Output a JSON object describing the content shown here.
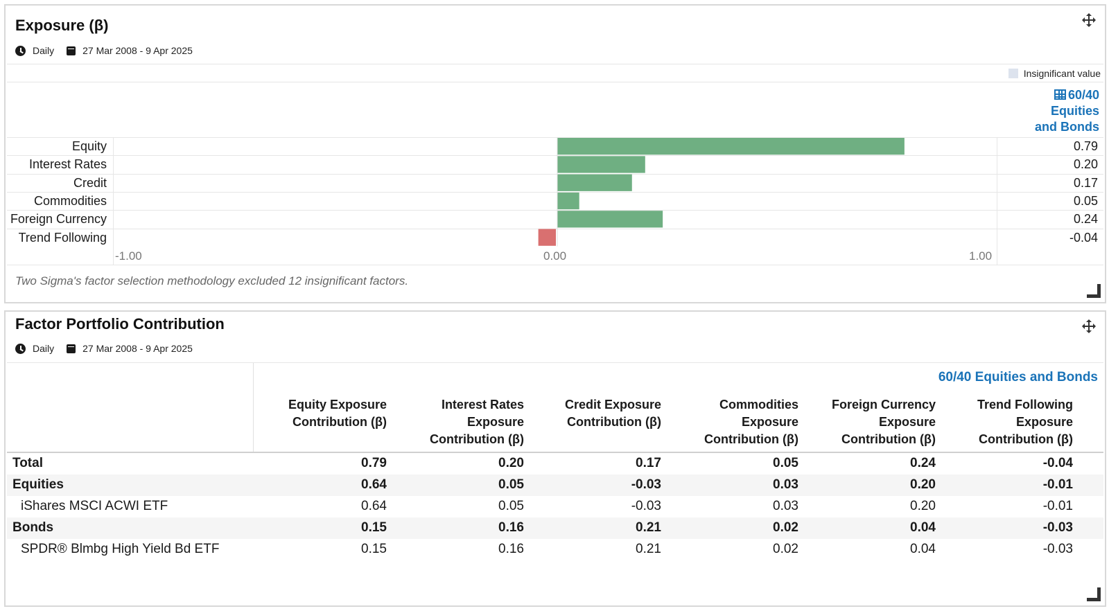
{
  "exposure": {
    "title": "Exposure (β)",
    "frequency": "Daily",
    "date_range": "27 Mar 2008 - 9 Apr 2025",
    "legend": "Insignificant value",
    "portfolio_label": "60/40 Equities and Bonds",
    "note": "Two Sigma's factor selection methodology excluded 12 insignificant factors.",
    "colors": {
      "positive": "#6faf82",
      "negative": "#d97070",
      "insignificant": "#dde3ee",
      "link": "#1a73b8"
    }
  },
  "chart_data": {
    "type": "bar",
    "orientation": "horizontal",
    "categories": [
      "Equity",
      "Interest Rates",
      "Credit",
      "Commodities",
      "Foreign Currency",
      "Trend Following"
    ],
    "values": [
      0.79,
      0.2,
      0.17,
      0.05,
      0.24,
      -0.04
    ],
    "value_labels": [
      "0.79",
      "0.20",
      "0.17",
      "0.05",
      "0.24",
      "-0.04"
    ],
    "xlim": [
      -1.0,
      1.0
    ],
    "ticks": [
      "-1.00",
      "0.00",
      "1.00"
    ],
    "legend_position": "top-right"
  },
  "contribution": {
    "title": "Factor Portfolio Contribution",
    "frequency": "Daily",
    "date_range": "27 Mar 2008 - 9 Apr 2025",
    "portfolio_label": "60/40 Equities and Bonds",
    "columns": [
      [
        "Equity Exposure",
        "Contribution (β)"
      ],
      [
        "Interest Rates",
        "Exposure",
        "Contribution (β)"
      ],
      [
        "Credit Exposure",
        "Contribution (β)"
      ],
      [
        "Commodities",
        "Exposure",
        "Contribution (β)"
      ],
      [
        "Foreign Currency",
        "Exposure",
        "Contribution (β)"
      ],
      [
        "Trend Following",
        "Exposure",
        "Contribution (β)"
      ]
    ],
    "rows": [
      {
        "label": "Total",
        "bold": true,
        "values": [
          "0.79",
          "0.20",
          "0.17",
          "0.05",
          "0.24",
          "-0.04"
        ]
      },
      {
        "label": "Equities",
        "bold": true,
        "values": [
          "0.64",
          "0.05",
          "-0.03",
          "0.03",
          "0.20",
          "-0.01"
        ]
      },
      {
        "label": "iShares MSCI ACWI ETF",
        "bold": false,
        "values": [
          "0.64",
          "0.05",
          "-0.03",
          "0.03",
          "0.20",
          "-0.01"
        ]
      },
      {
        "label": "Bonds",
        "bold": true,
        "values": [
          "0.15",
          "0.16",
          "0.21",
          "0.02",
          "0.04",
          "-0.03"
        ]
      },
      {
        "label": "SPDR® Blmbg High Yield Bd ETF",
        "bold": false,
        "values": [
          "0.15",
          "0.16",
          "0.21",
          "0.02",
          "0.04",
          "-0.03"
        ]
      }
    ]
  }
}
